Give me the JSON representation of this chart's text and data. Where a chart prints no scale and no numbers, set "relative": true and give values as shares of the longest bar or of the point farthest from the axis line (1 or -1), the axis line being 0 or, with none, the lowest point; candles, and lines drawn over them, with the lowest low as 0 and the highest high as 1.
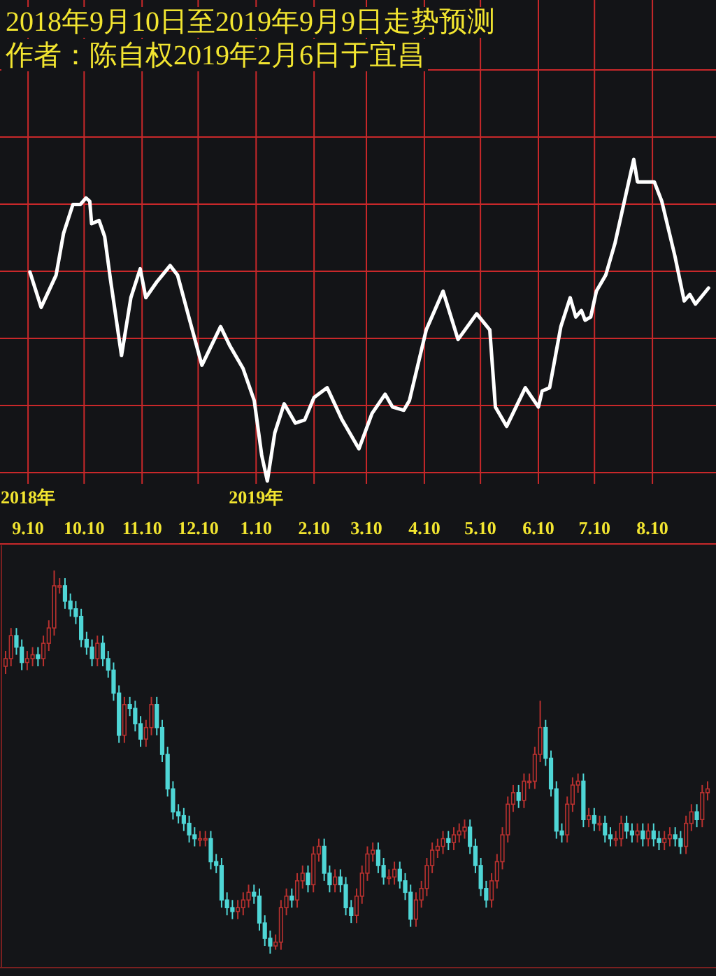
{
  "chart_data": [
    {
      "type": "line",
      "title": "2018年9月10日至2019年9月9日走势预测",
      "subtitle": "作者：陈自权2019年2月6日于宜昌",
      "relative": true,
      "grid": true,
      "xlim": [
        "2018-08-26",
        "2019-09-13"
      ],
      "xticks": [
        {
          "value": "2018-09-10",
          "label": "2018年\n9.10"
        },
        {
          "value": "2018-10-10",
          "label": "10.10"
        },
        {
          "value": "2018-11-10",
          "label": "11.10"
        },
        {
          "value": "2018-12-10",
          "label": "12.10"
        },
        {
          "value": "2019-01-10",
          "label": "2019年\n1.10"
        },
        {
          "value": "2019-02-10",
          "label": "2.10"
        },
        {
          "value": "2019-03-10",
          "label": "3.10"
        },
        {
          "value": "2019-04-10",
          "label": "4.10"
        },
        {
          "value": "2019-05-10",
          "label": "5.10"
        },
        {
          "value": "2019-06-10",
          "label": "6.10"
        },
        {
          "value": "2019-07-10",
          "label": "7.10"
        },
        {
          "value": "2019-08-10",
          "label": "8.10"
        }
      ],
      "series": [
        {
          "color": "#ffffff",
          "x": [
            "2018-09-11",
            "2018-09-17",
            "2018-09-25",
            "2018-09-29",
            "2018-10-04",
            "2018-10-08",
            "2018-10-11",
            "2018-10-13",
            "2018-10-14",
            "2018-10-18",
            "2018-10-21",
            "2018-10-24",
            "2018-10-30",
            "2018-11-04",
            "2018-11-09",
            "2018-11-12",
            "2018-11-18",
            "2018-11-25",
            "2018-11-29",
            "2018-12-05",
            "2018-12-12",
            "2018-12-22",
            "2018-12-27",
            "2019-01-03",
            "2019-01-09",
            "2019-01-13",
            "2019-01-16",
            "2019-01-20",
            "2019-01-25",
            "2019-01-31",
            "2019-02-05",
            "2019-02-10",
            "2019-02-17",
            "2019-02-25",
            "2019-03-06",
            "2019-03-13",
            "2019-03-20",
            "2019-03-24",
            "2019-03-30",
            "2019-04-02",
            "2019-04-11",
            "2019-04-20",
            "2019-04-28",
            "2019-05-08",
            "2019-05-15",
            "2019-05-18",
            "2019-05-24",
            "2019-06-03",
            "2019-06-10",
            "2019-06-12",
            "2019-06-16",
            "2019-06-22",
            "2019-06-27",
            "2019-06-30",
            "2019-07-03",
            "2019-07-05",
            "2019-07-08",
            "2019-07-11",
            "2019-07-16",
            "2019-07-21",
            "2019-07-26",
            "2019-07-31",
            "2019-08-02",
            "2019-08-11",
            "2019-08-15",
            "2019-08-22",
            "2019-08-27",
            "2019-08-30",
            "2019-09-02",
            "2019-09-09"
          ],
          "values": [
            0.65,
            0.54,
            0.64,
            0.77,
            0.86,
            0.86,
            0.88,
            0.87,
            0.8,
            0.81,
            0.76,
            0.63,
            0.39,
            0.57,
            0.66,
            0.57,
            0.62,
            0.67,
            0.64,
            0.51,
            0.36,
            0.48,
            0.42,
            0.35,
            0.25,
            0.08,
            0.0,
            0.15,
            0.24,
            0.18,
            0.19,
            0.26,
            0.29,
            0.19,
            0.1,
            0.21,
            0.27,
            0.23,
            0.22,
            0.25,
            0.47,
            0.59,
            0.44,
            0.52,
            0.47,
            0.23,
            0.17,
            0.29,
            0.23,
            0.28,
            0.29,
            0.48,
            0.57,
            0.51,
            0.53,
            0.5,
            0.51,
            0.59,
            0.64,
            0.74,
            0.87,
            1.0,
            0.93,
            0.93,
            0.87,
            0.7,
            0.56,
            0.58,
            0.55,
            0.6
          ]
        }
      ]
    },
    {
      "type": "candlestick",
      "relative": true,
      "categories": [
        null,
        null,
        null,
        null,
        null,
        null,
        null,
        null,
        null,
        null,
        null,
        null,
        null,
        null,
        null,
        null,
        null,
        null,
        null,
        null,
        null,
        null,
        null,
        null,
        null,
        null,
        null,
        null,
        null,
        null,
        null,
        null,
        null,
        null,
        null,
        null,
        null,
        null,
        null,
        null,
        null,
        null,
        null,
        null,
        null,
        null,
        null,
        null,
        null,
        null,
        null,
        null,
        null,
        null,
        null,
        null,
        null,
        null,
        null,
        null,
        null,
        null,
        null,
        null,
        null,
        null,
        null,
        null,
        null,
        null,
        null,
        null,
        null,
        null,
        null,
        null,
        null,
        null,
        null,
        null,
        null,
        null,
        null,
        null,
        null,
        null,
        null,
        null,
        null,
        null,
        null,
        null,
        null,
        null,
        null,
        null,
        null,
        null,
        null,
        null,
        null,
        null,
        null,
        null,
        null,
        null,
        null,
        null,
        null,
        null,
        null,
        null,
        null,
        null,
        null,
        null,
        null,
        null,
        null,
        null,
        null,
        null,
        null,
        null,
        null,
        null,
        null,
        null,
        null,
        null,
        null
      ],
      "ohlc": [
        [
          0.75,
          0.79,
          0.73,
          0.77
        ],
        [
          0.77,
          0.85,
          0.75,
          0.83
        ],
        [
          0.83,
          0.85,
          0.78,
          0.8
        ],
        [
          0.8,
          0.82,
          0.74,
          0.76
        ],
        [
          0.76,
          0.79,
          0.74,
          0.77
        ],
        [
          0.77,
          0.8,
          0.75,
          0.78
        ],
        [
          0.78,
          0.8,
          0.75,
          0.77
        ],
        [
          0.77,
          0.83,
          0.75,
          0.81
        ],
        [
          0.81,
          0.87,
          0.79,
          0.85
        ],
        [
          0.85,
          1,
          0.83,
          0.96
        ],
        [
          0.96,
          0.98,
          0.94,
          0.96
        ],
        [
          0.96,
          0.98,
          0.9,
          0.92
        ],
        [
          0.92,
          0.94,
          0.88,
          0.9
        ],
        [
          0.9,
          0.92,
          0.86,
          0.88
        ],
        [
          0.88,
          0.9,
          0.8,
          0.82
        ],
        [
          0.82,
          0.84,
          0.78,
          0.8
        ],
        [
          0.8,
          0.82,
          0.75,
          0.77
        ],
        [
          0.77,
          0.83,
          0.75,
          0.81
        ],
        [
          0.81,
          0.83,
          0.75,
          0.77
        ],
        [
          0.77,
          0.79,
          0.72,
          0.74
        ],
        [
          0.74,
          0.76,
          0.66,
          0.68
        ],
        [
          0.68,
          0.7,
          0.55,
          0.57
        ],
        [
          0.57,
          0.67,
          0.55,
          0.65
        ],
        [
          0.65,
          0.67,
          0.62,
          0.64
        ],
        [
          0.64,
          0.66,
          0.58,
          0.6
        ],
        [
          0.6,
          0.62,
          0.54,
          0.56
        ],
        [
          0.56,
          0.61,
          0.54,
          0.59
        ],
        [
          0.59,
          0.67,
          0.57,
          0.65
        ],
        [
          0.65,
          0.67,
          0.57,
          0.59
        ],
        [
          0.59,
          0.61,
          0.5,
          0.52
        ],
        [
          0.52,
          0.54,
          0.41,
          0.43
        ],
        [
          0.43,
          0.45,
          0.35,
          0.37
        ],
        [
          0.37,
          0.39,
          0.34,
          0.36
        ],
        [
          0.36,
          0.38,
          0.32,
          0.34
        ],
        [
          0.34,
          0.36,
          0.29,
          0.31
        ],
        [
          0.31,
          0.33,
          0.28,
          0.3
        ],
        [
          0.3,
          0.32,
          0.28,
          0.3
        ],
        [
          0.3,
          0.32,
          0.28,
          0.3
        ],
        [
          0.3,
          0.32,
          0.22,
          0.24
        ],
        [
          0.24,
          0.26,
          0.21,
          0.23
        ],
        [
          0.23,
          0.25,
          0.12,
          0.14
        ],
        [
          0.14,
          0.16,
          0.1,
          0.12
        ],
        [
          0.12,
          0.14,
          0.09,
          0.11
        ],
        [
          0.11,
          0.14,
          0.09,
          0.12
        ],
        [
          0.12,
          0.16,
          0.1,
          0.14
        ],
        [
          0.14,
          0.18,
          0.12,
          0.16
        ],
        [
          0.16,
          0.18,
          0.13,
          0.15
        ],
        [
          0.15,
          0.17,
          0.06,
          0.08
        ],
        [
          0.08,
          0.1,
          0.02,
          0.04
        ],
        [
          0.04,
          0.06,
          0,
          0.02
        ],
        [
          0.02,
          0.05,
          0.01,
          0.03
        ],
        [
          0.03,
          0.14,
          0.01,
          0.12
        ],
        [
          0.12,
          0.17,
          0.1,
          0.15
        ],
        [
          0.15,
          0.17,
          0.12,
          0.14
        ],
        [
          0.14,
          0.21,
          0.12,
          0.19
        ],
        [
          0.19,
          0.23,
          0.17,
          0.21
        ],
        [
          0.21,
          0.23,
          0.16,
          0.18
        ],
        [
          0.18,
          0.28,
          0.16,
          0.26
        ],
        [
          0.26,
          0.3,
          0.24,
          0.28
        ],
        [
          0.28,
          0.3,
          0.19,
          0.21
        ],
        [
          0.21,
          0.23,
          0.16,
          0.18
        ],
        [
          0.18,
          0.22,
          0.16,
          0.2
        ],
        [
          0.2,
          0.22,
          0.16,
          0.18
        ],
        [
          0.18,
          0.2,
          0.1,
          0.12
        ],
        [
          0.12,
          0.14,
          0.08,
          0.1
        ],
        [
          0.1,
          0.17,
          0.08,
          0.15
        ],
        [
          0.15,
          0.23,
          0.13,
          0.21
        ],
        [
          0.21,
          0.28,
          0.19,
          0.26
        ],
        [
          0.26,
          0.29,
          0.24,
          0.27
        ],
        [
          0.27,
          0.29,
          0.21,
          0.23
        ],
        [
          0.23,
          0.25,
          0.18,
          0.2
        ],
        [
          0.2,
          0.22,
          0.18,
          0.2
        ],
        [
          0.2,
          0.24,
          0.18,
          0.22
        ],
        [
          0.22,
          0.24,
          0.17,
          0.19
        ],
        [
          0.19,
          0.21,
          0.14,
          0.16
        ],
        [
          0.16,
          0.18,
          0.07,
          0.09
        ],
        [
          0.09,
          0.16,
          0.07,
          0.14
        ],
        [
          0.14,
          0.19,
          0.12,
          0.17
        ],
        [
          0.17,
          0.25,
          0.15,
          0.23
        ],
        [
          0.23,
          0.29,
          0.21,
          0.27
        ],
        [
          0.27,
          0.3,
          0.25,
          0.28
        ],
        [
          0.28,
          0.32,
          0.26,
          0.3
        ],
        [
          0.3,
          0.32,
          0.27,
          0.29
        ],
        [
          0.29,
          0.33,
          0.27,
          0.31
        ],
        [
          0.31,
          0.34,
          0.29,
          0.32
        ],
        [
          0.32,
          0.35,
          0.3,
          0.33
        ],
        [
          0.33,
          0.35,
          0.26,
          0.28
        ],
        [
          0.28,
          0.3,
          0.21,
          0.23
        ],
        [
          0.23,
          0.25,
          0.15,
          0.17
        ],
        [
          0.17,
          0.19,
          0.12,
          0.14
        ],
        [
          0.14,
          0.21,
          0.12,
          0.19
        ],
        [
          0.19,
          0.26,
          0.17,
          0.24
        ],
        [
          0.24,
          0.33,
          0.22,
          0.31
        ],
        [
          0.31,
          0.41,
          0.29,
          0.39
        ],
        [
          0.39,
          0.44,
          0.37,
          0.42
        ],
        [
          0.42,
          0.44,
          0.38,
          0.4
        ],
        [
          0.4,
          0.47,
          0.38,
          0.45
        ],
        [
          0.45,
          0.47,
          0.43,
          0.45
        ],
        [
          0.45,
          0.54,
          0.43,
          0.52
        ],
        [
          0.52,
          0.66,
          0.5,
          0.59
        ],
        [
          0.59,
          0.61,
          0.49,
          0.51
        ],
        [
          0.51,
          0.53,
          0.41,
          0.43
        ],
        [
          0.43,
          0.45,
          0.3,
          0.32
        ],
        [
          0.32,
          0.34,
          0.29,
          0.31
        ],
        [
          0.31,
          0.41,
          0.29,
          0.39
        ],
        [
          0.39,
          0.46,
          0.37,
          0.44
        ],
        [
          0.44,
          0.47,
          0.42,
          0.45
        ],
        [
          0.45,
          0.47,
          0.33,
          0.35
        ],
        [
          0.35,
          0.38,
          0.33,
          0.36
        ],
        [
          0.36,
          0.38,
          0.32,
          0.34
        ],
        [
          0.34,
          0.36,
          0.32,
          0.34
        ],
        [
          0.34,
          0.36,
          0.29,
          0.31
        ],
        [
          0.31,
          0.33,
          0.28,
          0.3
        ],
        [
          0.3,
          0.32,
          0.28,
          0.3
        ],
        [
          0.3,
          0.36,
          0.28,
          0.34
        ],
        [
          0.34,
          0.36,
          0.3,
          0.32
        ],
        [
          0.32,
          0.34,
          0.29,
          0.31
        ],
        [
          0.31,
          0.34,
          0.29,
          0.32
        ],
        [
          0.32,
          0.34,
          0.28,
          0.3
        ],
        [
          0.3,
          0.34,
          0.28,
          0.32
        ],
        [
          0.32,
          0.34,
          0.28,
          0.3
        ],
        [
          0.3,
          0.32,
          0.27,
          0.29
        ],
        [
          0.29,
          0.32,
          0.27,
          0.3
        ],
        [
          0.3,
          0.33,
          0.28,
          0.31
        ],
        [
          0.31,
          0.33,
          0.28,
          0.3
        ],
        [
          0.3,
          0.32,
          0.26,
          0.28
        ],
        [
          0.28,
          0.36,
          0.26,
          0.34
        ],
        [
          0.34,
          0.39,
          0.32,
          0.37
        ],
        [
          0.37,
          0.39,
          0.33,
          0.35
        ],
        [
          0.35,
          0.44,
          0.33,
          0.42
        ],
        [
          0.42,
          0.45,
          0.4,
          0.43
        ]
      ]
    }
  ]
}
